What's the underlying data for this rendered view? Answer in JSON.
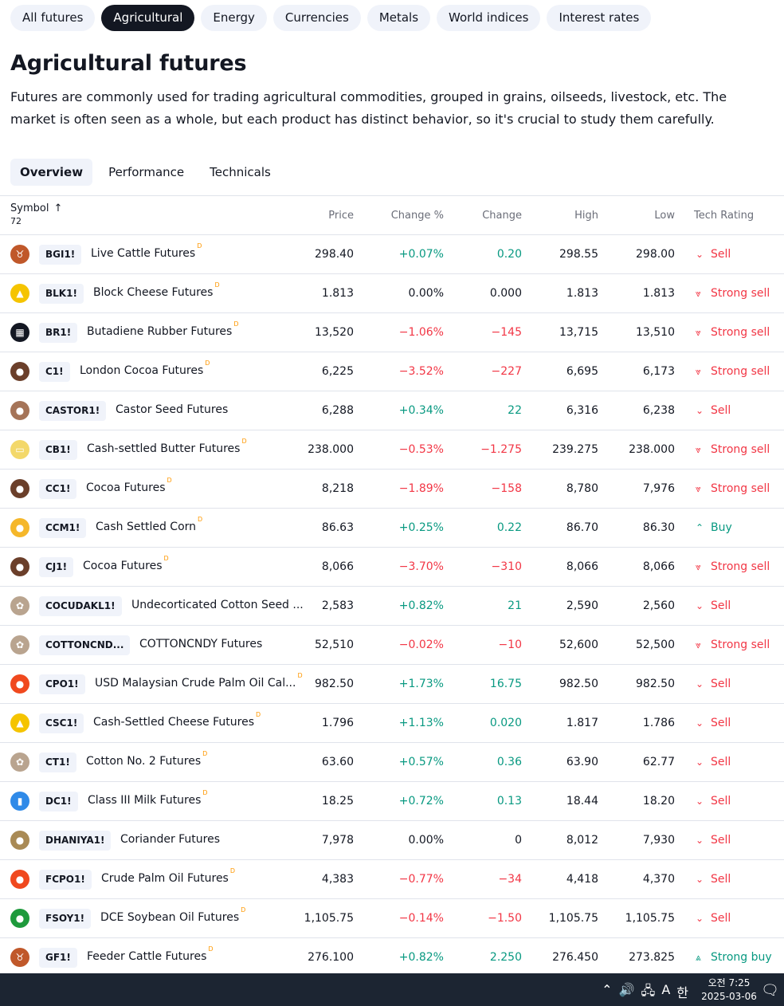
{
  "category_chips": [
    {
      "label": "All futures",
      "active": false
    },
    {
      "label": "Agricultural",
      "active": true
    },
    {
      "label": "Energy",
      "active": false
    },
    {
      "label": "Currencies",
      "active": false
    },
    {
      "label": "Metals",
      "active": false
    },
    {
      "label": "World indices",
      "active": false
    },
    {
      "label": "Interest rates",
      "active": false
    }
  ],
  "page": {
    "title": "Agricultural futures",
    "description": "Futures are commonly used for trading agricultural commodities, grouped in grains, oilseeds, livestock, etc. The market is often seen as a whole, but each product has distinct behavior, so it's crucial to study them carefully."
  },
  "tabs": [
    {
      "label": "Overview",
      "active": true
    },
    {
      "label": "Performance",
      "active": false
    },
    {
      "label": "Technicals",
      "active": false
    }
  ],
  "table": {
    "headers": {
      "symbol": "Symbol",
      "count": "72",
      "price": "Price",
      "change_pct": "Change %",
      "change": "Change",
      "high": "High",
      "low": "Low",
      "rating": "Tech Rating"
    },
    "delayed_marker": "D",
    "rows": [
      {
        "ticker": "BGI1!",
        "name": "Live Cattle Futures",
        "delayed": true,
        "logo": "cattle-icon",
        "logo_color": "#c0582a",
        "logo_glyph": "♉",
        "price": "298.40",
        "change_pct": "+0.07%",
        "change": "0.20",
        "high": "298.55",
        "low": "298.00",
        "rating": "Sell",
        "rating_icon": "chevron-down-icon",
        "rating_glyph": "⌄",
        "trend": "pos"
      },
      {
        "ticker": "BLK1!",
        "name": "Block Cheese Futures",
        "delayed": true,
        "logo": "cheese-icon",
        "logo_color": "#f5c400",
        "logo_glyph": "▲",
        "price": "1.813",
        "change_pct": "0.00%",
        "change": "0.000",
        "high": "1.813",
        "low": "1.813",
        "rating": "Strong sell",
        "rating_icon": "double-chevron-down-icon",
        "rating_glyph": "⩔",
        "trend": "neu"
      },
      {
        "ticker": "BR1!",
        "name": "Butadiene Rubber Futures",
        "delayed": true,
        "logo": "rubber-icon",
        "logo_color": "#131722",
        "logo_glyph": "▦",
        "price": "13,520",
        "change_pct": "−1.06%",
        "change": "−145",
        "high": "13,715",
        "low": "13,510",
        "rating": "Strong sell",
        "rating_icon": "double-chevron-down-icon",
        "rating_glyph": "⩔",
        "trend": "neg"
      },
      {
        "ticker": "C1!",
        "name": "London Cocoa Futures",
        "delayed": true,
        "logo": "cocoa-icon",
        "logo_color": "#6b3f2a",
        "logo_glyph": "●",
        "price": "6,225",
        "change_pct": "−3.52%",
        "change": "−227",
        "high": "6,695",
        "low": "6,173",
        "rating": "Strong sell",
        "rating_icon": "double-chevron-down-icon",
        "rating_glyph": "⩔",
        "trend": "neg"
      },
      {
        "ticker": "CASTOR1!",
        "name": "Castor Seed Futures",
        "delayed": false,
        "logo": "seed-icon",
        "logo_color": "#a57458",
        "logo_glyph": "●",
        "price": "6,288",
        "change_pct": "+0.34%",
        "change": "22",
        "high": "6,316",
        "low": "6,238",
        "rating": "Sell",
        "rating_icon": "chevron-down-icon",
        "rating_glyph": "⌄",
        "trend": "pos"
      },
      {
        "ticker": "CB1!",
        "name": "Cash-settled Butter Futures",
        "delayed": true,
        "logo": "butter-icon",
        "logo_color": "#f3d86a",
        "logo_glyph": "▭",
        "price": "238.000",
        "change_pct": "−0.53%",
        "change": "−1.275",
        "high": "239.275",
        "low": "238.000",
        "rating": "Strong sell",
        "rating_icon": "double-chevron-down-icon",
        "rating_glyph": "⩔",
        "trend": "neg"
      },
      {
        "ticker": "CC1!",
        "name": "Cocoa Futures",
        "delayed": true,
        "logo": "cocoa-icon",
        "logo_color": "#6b3f2a",
        "logo_glyph": "●",
        "price": "8,218",
        "change_pct": "−1.89%",
        "change": "−158",
        "high": "8,780",
        "low": "7,976",
        "rating": "Strong sell",
        "rating_icon": "double-chevron-down-icon",
        "rating_glyph": "⩔",
        "trend": "neg"
      },
      {
        "ticker": "CCM1!",
        "name": "Cash Settled Corn",
        "delayed": true,
        "logo": "corn-icon",
        "logo_color": "#f5b72a",
        "logo_glyph": "●",
        "price": "86.63",
        "change_pct": "+0.25%",
        "change": "0.22",
        "high": "86.70",
        "low": "86.30",
        "rating": "Buy",
        "rating_icon": "chevron-up-icon",
        "rating_glyph": "⌃",
        "trend": "pos"
      },
      {
        "ticker": "CJ1!",
        "name": "Cocoa Futures",
        "delayed": true,
        "logo": "cocoa-icon",
        "logo_color": "#6b3f2a",
        "logo_glyph": "●",
        "price": "8,066",
        "change_pct": "−3.70%",
        "change": "−310",
        "high": "8,066",
        "low": "8,066",
        "rating": "Strong sell",
        "rating_icon": "double-chevron-down-icon",
        "rating_glyph": "⩔",
        "trend": "neg"
      },
      {
        "ticker": "COCUDAKL1!",
        "name": "Undecorticated Cotton Seed ...",
        "delayed": false,
        "logo": "cotton-icon",
        "logo_color": "#b9a48f",
        "logo_glyph": "✿",
        "price": "2,583",
        "change_pct": "+0.82%",
        "change": "21",
        "high": "2,590",
        "low": "2,560",
        "rating": "Sell",
        "rating_icon": "chevron-down-icon",
        "rating_glyph": "⌄",
        "trend": "pos"
      },
      {
        "ticker": "COTTONCND...",
        "name": "COTTONCNDY Futures",
        "delayed": false,
        "logo": "cotton-icon",
        "logo_color": "#b9a48f",
        "logo_glyph": "✿",
        "price": "52,510",
        "change_pct": "−0.02%",
        "change": "−10",
        "high": "52,600",
        "low": "52,500",
        "rating": "Strong sell",
        "rating_icon": "double-chevron-down-icon",
        "rating_glyph": "⩔",
        "trend": "neg"
      },
      {
        "ticker": "CPO1!",
        "name": "USD Malaysian Crude Palm Oil Cal...",
        "delayed": true,
        "logo": "oil-drop-icon",
        "logo_color": "#f0491e",
        "logo_glyph": "●",
        "price": "982.50",
        "change_pct": "+1.73%",
        "change": "16.75",
        "high": "982.50",
        "low": "982.50",
        "rating": "Sell",
        "rating_icon": "chevron-down-icon",
        "rating_glyph": "⌄",
        "trend": "pos"
      },
      {
        "ticker": "CSC1!",
        "name": "Cash-Settled Cheese Futures",
        "delayed": true,
        "logo": "cheese-icon",
        "logo_color": "#f5c400",
        "logo_glyph": "▲",
        "price": "1.796",
        "change_pct": "+1.13%",
        "change": "0.020",
        "high": "1.817",
        "low": "1.786",
        "rating": "Sell",
        "rating_icon": "chevron-down-icon",
        "rating_glyph": "⌄",
        "trend": "pos"
      },
      {
        "ticker": "CT1!",
        "name": "Cotton No. 2 Futures",
        "delayed": true,
        "logo": "cotton-icon",
        "logo_color": "#b9a48f",
        "logo_glyph": "✿",
        "price": "63.60",
        "change_pct": "+0.57%",
        "change": "0.36",
        "high": "63.90",
        "low": "62.77",
        "rating": "Sell",
        "rating_icon": "chevron-down-icon",
        "rating_glyph": "⌄",
        "trend": "pos"
      },
      {
        "ticker": "DC1!",
        "name": "Class III Milk Futures",
        "delayed": true,
        "logo": "milk-icon",
        "logo_color": "#2f8ae8",
        "logo_glyph": "▮",
        "price": "18.25",
        "change_pct": "+0.72%",
        "change": "0.13",
        "high": "18.44",
        "low": "18.20",
        "rating": "Sell",
        "rating_icon": "chevron-down-icon",
        "rating_glyph": "⌄",
        "trend": "pos"
      },
      {
        "ticker": "DHANIYA1!",
        "name": "Coriander Futures",
        "delayed": false,
        "logo": "seed-icon",
        "logo_color": "#a98a55",
        "logo_glyph": "●",
        "price": "7,978",
        "change_pct": "0.00%",
        "change": "0",
        "high": "8,012",
        "low": "7,930",
        "rating": "Sell",
        "rating_icon": "chevron-down-icon",
        "rating_glyph": "⌄",
        "trend": "neu"
      },
      {
        "ticker": "FCPO1!",
        "name": "Crude Palm Oil Futures",
        "delayed": true,
        "logo": "oil-drop-icon",
        "logo_color": "#f0491e",
        "logo_glyph": "●",
        "price": "4,383",
        "change_pct": "−0.77%",
        "change": "−34",
        "high": "4,418",
        "low": "4,370",
        "rating": "Sell",
        "rating_icon": "chevron-down-icon",
        "rating_glyph": "⌄",
        "trend": "neg"
      },
      {
        "ticker": "FSOY1!",
        "name": "DCE Soybean Oil Futures",
        "delayed": true,
        "logo": "oil-drop-icon",
        "logo_color": "#1e9a3c",
        "logo_glyph": "●",
        "price": "1,105.75",
        "change_pct": "−0.14%",
        "change": "−1.50",
        "high": "1,105.75",
        "low": "1,105.75",
        "rating": "Sell",
        "rating_icon": "chevron-down-icon",
        "rating_glyph": "⌄",
        "trend": "neg"
      },
      {
        "ticker": "GF1!",
        "name": "Feeder Cattle Futures",
        "delayed": true,
        "logo": "cattle-icon",
        "logo_color": "#c0582a",
        "logo_glyph": "♉",
        "price": "276.100",
        "change_pct": "+0.82%",
        "change": "2.250",
        "high": "276.450",
        "low": "273.825",
        "rating": "Strong buy",
        "rating_icon": "double-chevron-up-icon",
        "rating_glyph": "⩓",
        "trend": "pos"
      }
    ]
  },
  "taskbar": {
    "tray_icons": [
      {
        "name": "chevron-up-icon",
        "glyph": "⌃"
      },
      {
        "name": "speaker-icon",
        "glyph": "🔊"
      },
      {
        "name": "network-icon",
        "glyph": "🖧"
      },
      {
        "name": "font-a-icon",
        "glyph": "A"
      },
      {
        "name": "ime-korean-icon",
        "glyph": "한"
      }
    ],
    "time": "오전 7:25",
    "date": "2025-03-06",
    "notification_glyph": "🗨"
  }
}
